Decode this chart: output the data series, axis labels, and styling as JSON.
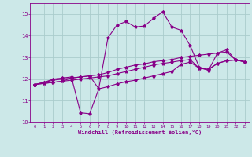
{
  "xlabel": "Windchill (Refroidissement éolien,°C)",
  "background_color": "#cce8e8",
  "grid_color": "#aacccc",
  "line_color": "#880088",
  "xlim": [
    -0.5,
    23.5
  ],
  "ylim": [
    10,
    15.5
  ],
  "yticks": [
    10,
    11,
    12,
    13,
    14,
    15
  ],
  "xticks": [
    0,
    1,
    2,
    3,
    4,
    5,
    6,
    7,
    8,
    9,
    10,
    11,
    12,
    13,
    14,
    15,
    16,
    17,
    18,
    19,
    20,
    21,
    22,
    23
  ],
  "series": [
    {
      "x": [
        0,
        1,
        2,
        3,
        4,
        5,
        6,
        7,
        8,
        9,
        10,
        11,
        12,
        13,
        14,
        15,
        16,
        17,
        18,
        19,
        20,
        21,
        22,
        23
      ],
      "y": [
        11.75,
        11.85,
        11.95,
        12.0,
        12.05,
        12.1,
        12.15,
        12.2,
        12.3,
        12.45,
        12.55,
        12.65,
        12.7,
        12.8,
        12.85,
        12.9,
        13.0,
        13.05,
        13.1,
        13.15,
        13.2,
        13.25,
        12.88,
        12.8
      ]
    },
    {
      "x": [
        0,
        1,
        2,
        3,
        4,
        5,
        6,
        7,
        8,
        9,
        10,
        11,
        12,
        13,
        14,
        15,
        16,
        17,
        18,
        19,
        20,
        21,
        22,
        23
      ],
      "y": [
        11.75,
        11.8,
        11.85,
        11.9,
        11.95,
        12.0,
        12.05,
        12.1,
        12.15,
        12.25,
        12.35,
        12.45,
        12.55,
        12.65,
        12.72,
        12.78,
        12.85,
        12.9,
        12.5,
        12.45,
        12.72,
        12.85,
        12.88,
        12.8
      ]
    },
    {
      "x": [
        0,
        1,
        2,
        3,
        4,
        5,
        6,
        7,
        8,
        9,
        10,
        11,
        12,
        13,
        14,
        15,
        16,
        17,
        18,
        19,
        20,
        21,
        22,
        23
      ],
      "y": [
        11.75,
        11.85,
        12.0,
        12.05,
        12.1,
        10.45,
        10.4,
        11.55,
        13.9,
        14.5,
        14.65,
        14.4,
        14.45,
        14.8,
        15.1,
        14.4,
        14.25,
        13.55,
        12.55,
        12.4,
        13.2,
        13.35,
        12.88,
        12.8
      ]
    },
    {
      "x": [
        0,
        1,
        2,
        3,
        4,
        5,
        6,
        7,
        8,
        9,
        10,
        11,
        12,
        13,
        14,
        15,
        16,
        17,
        18,
        19,
        20,
        21,
        22,
        23
      ],
      "y": [
        11.75,
        11.8,
        11.85,
        11.9,
        12.05,
        12.1,
        12.15,
        11.55,
        11.65,
        11.78,
        11.88,
        11.95,
        12.05,
        12.15,
        12.25,
        12.35,
        12.68,
        12.78,
        12.5,
        12.45,
        12.72,
        12.85,
        12.88,
        12.8
      ]
    }
  ]
}
